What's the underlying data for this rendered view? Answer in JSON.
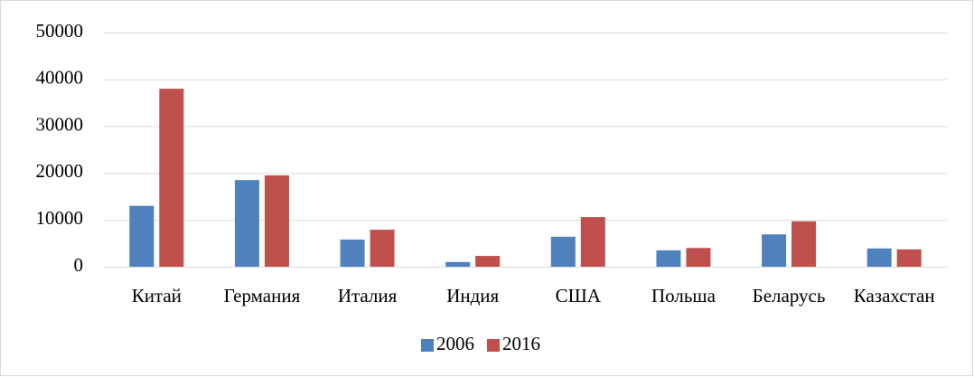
{
  "chart_data": {
    "type": "bar",
    "categories": [
      "Китай",
      "Германия",
      "Италия",
      "Индия",
      "США",
      "Польша",
      "Беларусь",
      "Казахстан"
    ],
    "series": [
      {
        "name": "2006",
        "color": "#4f81bd",
        "values": [
          13000,
          18500,
          5800,
          1000,
          6400,
          3500,
          6900,
          3900
        ]
      },
      {
        "name": "2016",
        "color": "#c0504d",
        "values": [
          38000,
          19500,
          7900,
          2300,
          10600,
          4000,
          9700,
          3700
        ]
      }
    ],
    "ylim": [
      0,
      50000
    ],
    "yticks": [
      0,
      10000,
      20000,
      30000,
      40000,
      50000
    ],
    "grid": true,
    "legend": "bottom"
  }
}
